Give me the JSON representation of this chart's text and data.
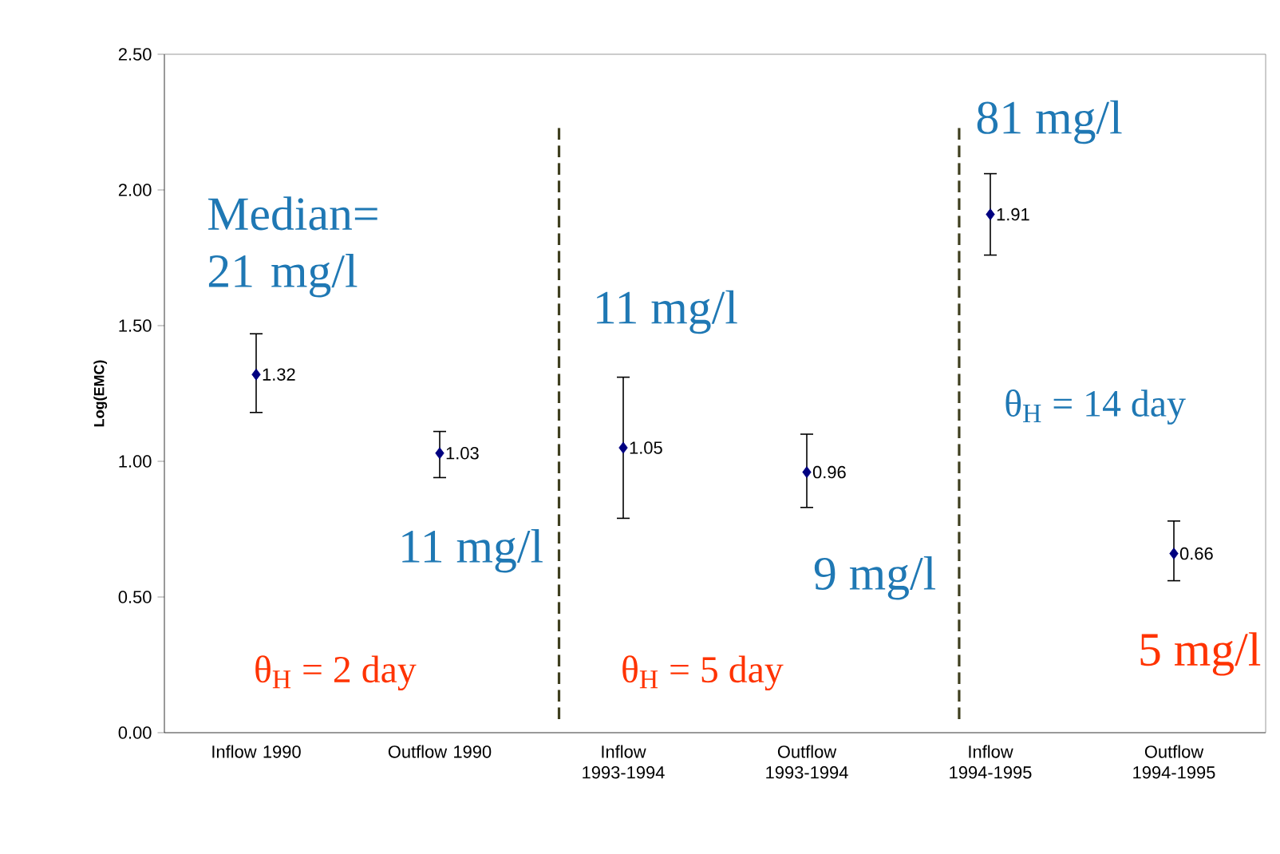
{
  "chart_data": {
    "type": "scatter",
    "ylabel": "Log(EMC)",
    "categories": [
      "Inflow 1990",
      "Outflow 1990",
      "Inflow 1993-1994",
      "Outflow 1993-1994",
      "Inflow 1994-1995",
      "Outflow 1994-1995"
    ],
    "values": [
      1.32,
      1.03,
      1.05,
      0.96,
      1.91,
      0.66
    ],
    "errors": [
      [
        1.18,
        1.47
      ],
      [
        0.94,
        1.11
      ],
      [
        0.79,
        1.31
      ],
      [
        0.83,
        1.1
      ],
      [
        1.76,
        2.06
      ],
      [
        0.56,
        0.78
      ]
    ],
    "color": "#000080",
    "marker": "diamond",
    "data_labels": true,
    "ylim": [
      0,
      2.5
    ],
    "yticks": [
      {
        "value": 0,
        "label": "0.00"
      },
      {
        "value": 0.5,
        "label": "0.50"
      },
      {
        "value": 1,
        "label": "1.00"
      },
      {
        "value": 1.5,
        "label": "1.50"
      },
      {
        "value": 2,
        "label": "2.00"
      },
      {
        "value": 2.5,
        "label": "2.50"
      }
    ],
    "annotations": [
      "Median= 21 mg/l",
      "11 mg/l",
      "θ$_{H}$ = 2 day",
      "11 mg/l",
      "θ$_{H}$ = 5 day",
      "9 mg/l",
      "81 mg/l",
      "θ$_{H}$ = 14 day",
      "5 mg/l"
    ]
  }
}
